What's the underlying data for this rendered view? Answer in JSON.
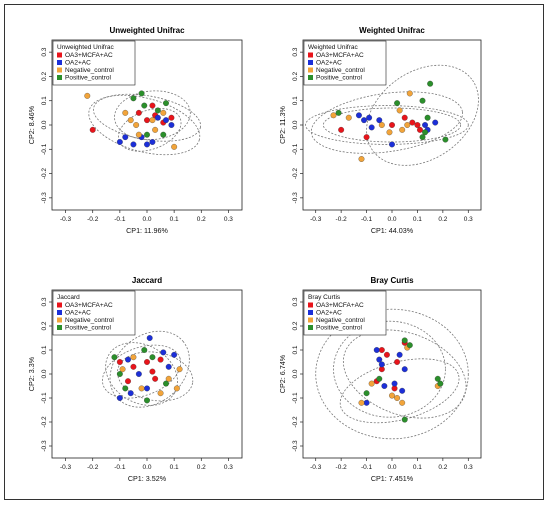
{
  "colors": {
    "OA3+MCFA+AC": "#e8141b",
    "OA2+AC": "#1c2fd8",
    "Negative_control": "#f2a43a",
    "Positive_control": "#2b8f2b"
  },
  "chart_data": [
    {
      "type": "scatter",
      "title": "Unweighted Unifrac",
      "xlabel": "CP1: 11.96%",
      "ylabel": "CP2: 8.46%",
      "xlim": [
        -0.35,
        0.35
      ],
      "ylim": [
        -0.35,
        0.35
      ],
      "ticks": [
        -0.3,
        -0.2,
        -0.1,
        0.0,
        0.1,
        0.2,
        0.3
      ],
      "tick_labels": [
        "-0.3",
        "-0.2",
        "-0.1",
        "0.0",
        "0.1",
        "0.2",
        "0.3"
      ],
      "legend": {
        "title": "Unweighted Unifrac",
        "position": "top-left",
        "entries": [
          "OA3+MCFA+AC",
          "OA2+AC",
          "Negative_control",
          "Positive_control"
        ]
      },
      "series": [
        {
          "name": "OA3+MCFA+AC",
          "points": [
            [
              -0.2,
              -0.02
            ],
            [
              0.02,
              0.08
            ],
            [
              0.06,
              0.01
            ],
            [
              0.09,
              0.03
            ],
            [
              0.03,
              0.04
            ],
            [
              0.0,
              0.02
            ],
            [
              -0.03,
              0.05
            ]
          ]
        },
        {
          "name": "OA2+AC",
          "points": [
            [
              -0.08,
              -0.05
            ],
            [
              -0.1,
              -0.07
            ],
            [
              -0.05,
              -0.08
            ],
            [
              0.0,
              -0.08
            ],
            [
              0.07,
              0.02
            ],
            [
              0.09,
              0.0
            ],
            [
              0.04,
              0.03
            ],
            [
              0.02,
              -0.07
            ],
            [
              -0.02,
              -0.05
            ]
          ]
        },
        {
          "name": "Negative_control",
          "points": [
            [
              -0.22,
              0.12
            ],
            [
              -0.08,
              0.05
            ],
            [
              -0.06,
              0.02
            ],
            [
              0.02,
              0.02
            ],
            [
              0.03,
              -0.02
            ],
            [
              0.1,
              -0.09
            ],
            [
              0.06,
              0.05
            ],
            [
              -0.03,
              -0.04
            ],
            [
              -0.04,
              0.0
            ]
          ]
        },
        {
          "name": "Positive_control",
          "points": [
            [
              -0.05,
              0.11
            ],
            [
              -0.02,
              0.13
            ],
            [
              0.07,
              0.09
            ],
            [
              0.06,
              -0.04
            ],
            [
              0.0,
              -0.04
            ],
            [
              -0.01,
              0.08
            ],
            [
              0.04,
              0.06
            ]
          ]
        }
      ],
      "ellipses": [
        {
          "group": "OA3+MCFA+AC",
          "center": [
            0.0,
            0.03
          ],
          "radii": [
            0.2,
            0.09
          ],
          "angle": -10
        },
        {
          "group": "OA2+AC",
          "center": [
            0.01,
            -0.02
          ],
          "radii": [
            0.12,
            0.08
          ],
          "angle": 20
        },
        {
          "group": "Negative_control",
          "center": [
            -0.01,
            0.0
          ],
          "radii": [
            0.21,
            0.11
          ],
          "angle": -15
        },
        {
          "group": "Positive_control",
          "center": [
            0.02,
            0.04
          ],
          "radii": [
            0.14,
            0.1
          ],
          "angle": 5
        }
      ]
    },
    {
      "type": "scatter",
      "title": "Weighted Unifrac",
      "xlabel": "CP1: 44.03%",
      "ylabel": "CP2: 11.3%",
      "xlim": [
        -0.35,
        0.35
      ],
      "ylim": [
        -0.35,
        0.35
      ],
      "ticks": [
        -0.3,
        -0.2,
        -0.1,
        0.0,
        0.1,
        0.2,
        0.3
      ],
      "tick_labels": [
        "-0.3",
        "-0.2",
        "-0.1",
        "0.0",
        "0.1",
        "0.2",
        "0.3"
      ],
      "legend": {
        "title": "Weighted Unifrac",
        "position": "top-left",
        "entries": [
          "OA3+MCFA+AC",
          "OA2+AC",
          "Negative_control",
          "Positive_control"
        ]
      },
      "series": [
        {
          "name": "OA3+MCFA+AC",
          "points": [
            [
              -0.2,
              -0.02
            ],
            [
              0.0,
              0.0
            ],
            [
              0.05,
              0.03
            ],
            [
              0.1,
              0.0
            ],
            [
              0.11,
              -0.02
            ],
            [
              -0.1,
              -0.05
            ],
            [
              0.08,
              0.01
            ]
          ]
        },
        {
          "name": "OA2+AC",
          "points": [
            [
              -0.13,
              0.04
            ],
            [
              -0.11,
              0.02
            ],
            [
              -0.08,
              -0.01
            ],
            [
              -0.05,
              0.02
            ],
            [
              0.0,
              -0.08
            ],
            [
              0.13,
              0.0
            ],
            [
              0.14,
              -0.02
            ],
            [
              0.17,
              0.01
            ],
            [
              -0.09,
              0.03
            ]
          ]
        },
        {
          "name": "Negative_control",
          "points": [
            [
              -0.23,
              0.04
            ],
            [
              -0.17,
              0.03
            ],
            [
              -0.12,
              -0.14
            ],
            [
              -0.04,
              0.0
            ],
            [
              0.03,
              0.06
            ],
            [
              0.06,
              0.0
            ],
            [
              0.04,
              -0.02
            ],
            [
              0.07,
              0.13
            ],
            [
              -0.01,
              -0.03
            ]
          ]
        },
        {
          "name": "Positive_control",
          "points": [
            [
              -0.21,
              0.05
            ],
            [
              0.02,
              0.09
            ],
            [
              0.12,
              0.1
            ],
            [
              0.14,
              0.03
            ],
            [
              0.12,
              -0.05
            ],
            [
              0.15,
              0.17
            ],
            [
              0.21,
              -0.06
            ],
            [
              0.13,
              -0.03
            ]
          ]
        }
      ],
      "ellipses": [
        {
          "group": "OA3+MCFA+AC",
          "center": [
            -0.02,
            0.0
          ],
          "radii": [
            0.32,
            0.08
          ],
          "angle": 0
        },
        {
          "group": "OA2+AC",
          "center": [
            0.0,
            0.0
          ],
          "radii": [
            0.27,
            0.07
          ],
          "angle": 0
        },
        {
          "group": "Negative_control",
          "center": [
            -0.02,
            0.01
          ],
          "radii": [
            0.3,
            0.12
          ],
          "angle": 8
        },
        {
          "group": "Positive_control",
          "center": [
            0.12,
            0.04
          ],
          "radii": [
            0.24,
            0.18
          ],
          "angle": 35
        }
      ]
    },
    {
      "type": "scatter",
      "title": "Jaccard",
      "xlabel": "CP1: 3.52%",
      "ylabel": "CP2: 3.3%",
      "xlim": [
        -0.35,
        0.35
      ],
      "ylim": [
        -0.35,
        0.35
      ],
      "ticks": [
        -0.3,
        -0.2,
        -0.1,
        0.0,
        0.1,
        0.2,
        0.3
      ],
      "tick_labels": [
        "-0.3",
        "-0.2",
        "-0.1",
        "0.0",
        "0.1",
        "0.2",
        "0.3"
      ],
      "legend": {
        "title": "Jaccard",
        "position": "top-left",
        "entries": [
          "OA3+MCFA+AC",
          "OA2+AC",
          "Negative_control",
          "Positive_control"
        ]
      },
      "series": [
        {
          "name": "OA3+MCFA+AC",
          "points": [
            [
              -0.1,
              0.05
            ],
            [
              -0.05,
              0.03
            ],
            [
              0.0,
              0.05
            ],
            [
              0.03,
              -0.02
            ],
            [
              -0.07,
              -0.03
            ],
            [
              0.05,
              0.06
            ],
            [
              0.02,
              0.01
            ]
          ]
        },
        {
          "name": "OA2+AC",
          "points": [
            [
              0.01,
              0.15
            ],
            [
              -0.07,
              0.06
            ],
            [
              -0.03,
              0.0
            ],
            [
              0.06,
              0.09
            ],
            [
              0.1,
              0.08
            ],
            [
              -0.06,
              -0.08
            ],
            [
              -0.1,
              -0.1
            ],
            [
              0.0,
              -0.06
            ],
            [
              0.08,
              0.03
            ]
          ]
        },
        {
          "name": "Negative_control",
          "points": [
            [
              -0.09,
              0.02
            ],
            [
              0.12,
              0.02
            ],
            [
              0.11,
              -0.06
            ],
            [
              -0.02,
              -0.06
            ],
            [
              0.05,
              -0.08
            ],
            [
              0.08,
              -0.02
            ],
            [
              -0.05,
              0.07
            ]
          ]
        },
        {
          "name": "Positive_control",
          "points": [
            [
              -0.12,
              0.07
            ],
            [
              -0.1,
              0.0
            ],
            [
              -0.08,
              -0.06
            ],
            [
              0.02,
              0.07
            ],
            [
              -0.01,
              0.1
            ],
            [
              0.07,
              -0.04
            ],
            [
              0.0,
              -0.11
            ]
          ]
        }
      ],
      "ellipses": [
        {
          "group": "OA3+MCFA+AC",
          "center": [
            -0.02,
            0.01
          ],
          "radii": [
            0.15,
            0.1
          ],
          "angle": 20
        },
        {
          "group": "OA2+AC",
          "center": [
            0.01,
            0.02
          ],
          "radii": [
            0.16,
            0.14
          ],
          "angle": 40
        },
        {
          "group": "Negative_control",
          "center": [
            0.03,
            -0.01
          ],
          "radii": [
            0.14,
            0.1
          ],
          "angle": -10
        },
        {
          "group": "Positive_control",
          "center": [
            -0.02,
            0.0
          ],
          "radii": [
            0.14,
            0.12
          ],
          "angle": -30
        }
      ]
    },
    {
      "type": "scatter",
      "title": "Bray Curtis",
      "xlabel": "CP1: 7.451%",
      "ylabel": "CP2: 6.74%",
      "xlim": [
        -0.35,
        0.35
      ],
      "ylim": [
        -0.35,
        0.35
      ],
      "ticks": [
        -0.3,
        -0.2,
        -0.1,
        0.0,
        0.1,
        0.2,
        0.3
      ],
      "tick_labels": [
        "-0.3",
        "-0.2",
        "-0.1",
        "0.0",
        "0.1",
        "0.2",
        "0.3"
      ],
      "legend": {
        "title": "Bray Curtis",
        "position": "top-left",
        "entries": [
          "OA3+MCFA+AC",
          "OA2+AC",
          "Negative_control",
          "Positive_control"
        ]
      },
      "series": [
        {
          "name": "OA3+MCFA+AC",
          "points": [
            [
              -0.04,
              0.1
            ],
            [
              -0.04,
              0.02
            ],
            [
              -0.06,
              -0.03
            ],
            [
              0.01,
              -0.06
            ],
            [
              0.02,
              0.05
            ],
            [
              0.05,
              0.13
            ],
            [
              -0.02,
              0.08
            ]
          ]
        },
        {
          "name": "OA2+AC",
          "points": [
            [
              -0.06,
              0.1
            ],
            [
              -0.05,
              0.06
            ],
            [
              -0.1,
              -0.12
            ],
            [
              0.03,
              0.08
            ],
            [
              0.04,
              -0.07
            ],
            [
              0.05,
              0.02
            ],
            [
              -0.04,
              0.04
            ],
            [
              0.01,
              -0.04
            ],
            [
              -0.03,
              -0.05
            ]
          ]
        },
        {
          "name": "Negative_control",
          "points": [
            [
              -0.12,
              -0.12
            ],
            [
              0.0,
              -0.09
            ],
            [
              0.02,
              -0.1
            ],
            [
              0.04,
              -0.12
            ],
            [
              0.06,
              0.11
            ],
            [
              0.18,
              -0.05
            ],
            [
              -0.08,
              -0.04
            ]
          ]
        },
        {
          "name": "Positive_control",
          "points": [
            [
              -0.1,
              -0.08
            ],
            [
              0.05,
              0.14
            ],
            [
              0.07,
              0.12
            ],
            [
              0.05,
              -0.19
            ],
            [
              0.18,
              -0.02
            ],
            [
              0.19,
              -0.04
            ],
            [
              -0.05,
              -0.02
            ]
          ]
        }
      ],
      "ellipses": [
        {
          "group": "OA3+MCFA+AC",
          "center": [
            -0.01,
            0.02
          ],
          "radii": [
            0.22,
            0.2
          ],
          "angle": 0
        },
        {
          "group": "OA2+AC",
          "center": [
            0.0,
            0.0
          ],
          "radii": [
            0.3,
            0.27
          ],
          "angle": 0
        },
        {
          "group": "Negative_control",
          "center": [
            0.03,
            -0.07
          ],
          "radii": [
            0.24,
            0.12
          ],
          "angle": 15
        },
        {
          "group": "Positive_control",
          "center": [
            0.05,
            0.0
          ],
          "radii": [
            0.25,
            0.17
          ],
          "angle": -20
        }
      ]
    }
  ]
}
